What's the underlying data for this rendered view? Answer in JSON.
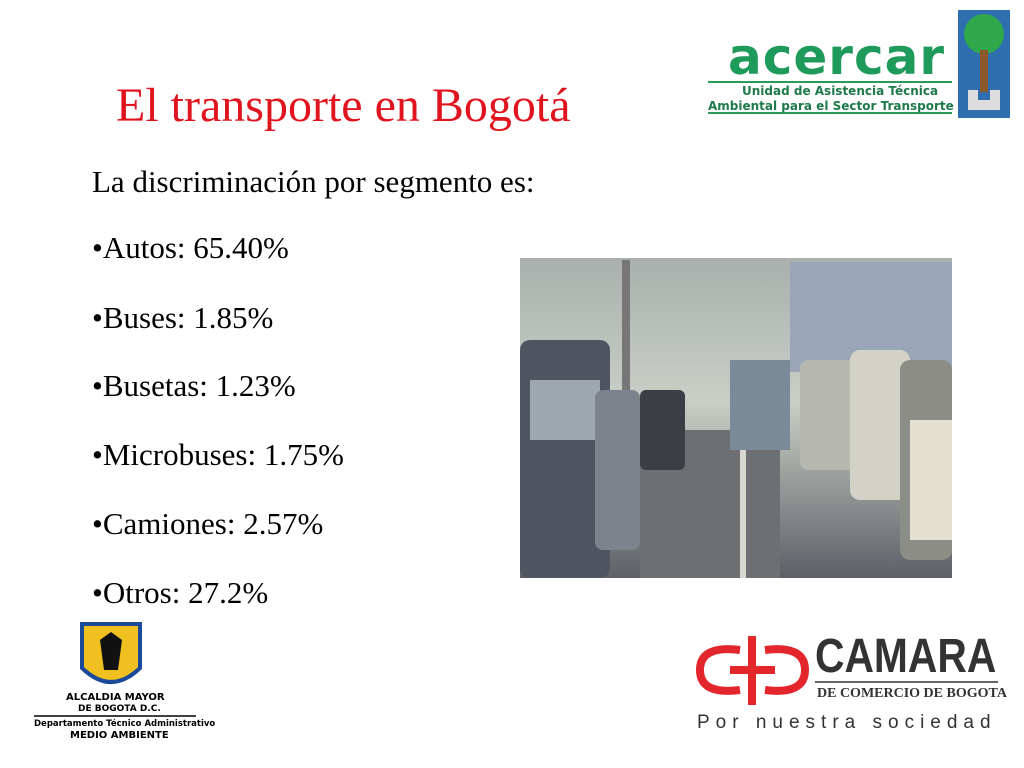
{
  "header": {
    "title": "El transporte en Bogotá"
  },
  "body": {
    "intro": "La discriminación por segmento es:",
    "items": [
      "•Autos: 65.40%",
      "•Buses: 1.85%",
      "•Busetas: 1.23%",
      "•Microbuses: 1.75%",
      "•Camiones: 2.57%",
      "•Otros: 27.2%"
    ]
  },
  "logos": {
    "acercar": {
      "name": "acercar",
      "line1": "Unidad de Asistencia Técnica",
      "line2": "Ambiental para el Sector Transporte"
    },
    "alcaldia": {
      "line1": "ALCALDIA MAYOR",
      "line2": "DE BOGOTA D.C.",
      "line3": "Departamento Técnico Administrativo",
      "line4": "MEDIO AMBIENTE"
    },
    "camara": {
      "name": "CAMARA",
      "line1": "DE COMERCIO DE BOGOTA",
      "slogan": "Por nuestra sociedad"
    }
  }
}
